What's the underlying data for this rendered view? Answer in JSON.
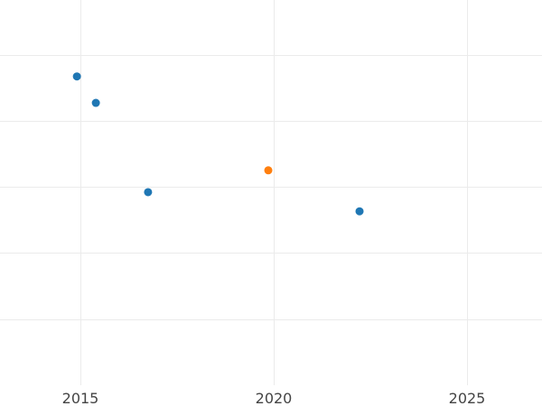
{
  "chart_data": {
    "type": "scatter",
    "title": "",
    "xlabel": "",
    "ylabel": "",
    "xlim": [
      2012.9,
      2026.9
    ],
    "ylim": [
      -0.3,
      6
    ],
    "x_ticks": [
      "2015",
      "2020",
      "2025"
    ],
    "x_tick_values": [
      2015,
      2020,
      2025
    ],
    "y_gridlines": [
      1,
      2,
      3,
      4,
      5
    ],
    "y_tick_labels_shown": false,
    "grid": true,
    "points": [
      {
        "x": 2014.91,
        "y": 4.67,
        "color": "#1f77b4"
      },
      {
        "x": 2015.4,
        "y": 4.27,
        "color": "#1f77b4"
      },
      {
        "x": 2016.75,
        "y": 2.92,
        "color": "#1f77b4"
      },
      {
        "x": 2019.86,
        "y": 3.25,
        "color": "#ff7f0e"
      },
      {
        "x": 2022.22,
        "y": 2.63,
        "color": "#1f77b4"
      }
    ]
  }
}
